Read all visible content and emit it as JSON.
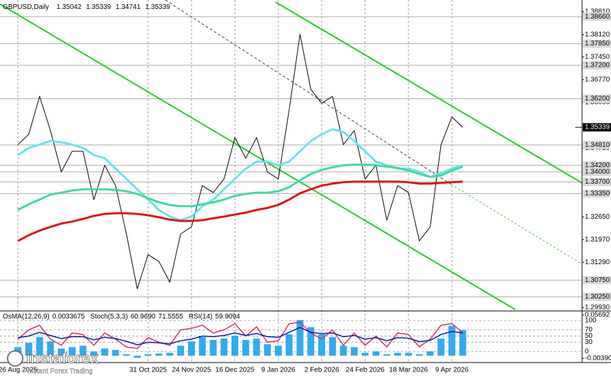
{
  "chart_data": [
    {
      "type": "line",
      "title": "GBPUSD,Daily",
      "ohlc": [
        1.35042,
        1.35339,
        1.34741,
        1.35339
      ],
      "categories": [
        "26 Aug 2025",
        null,
        null,
        null,
        null,
        null,
        null,
        null,
        null,
        null,
        null,
        null,
        "31 Oct 2025",
        null,
        null,
        null,
        "24 Nov 2025",
        null,
        null,
        null,
        "16 Dec 2025",
        null,
        null,
        null,
        "9 Jan 2026",
        null,
        null,
        null,
        "2 Feb 2026",
        null,
        null,
        null,
        "24 Feb 2026",
        null,
        null,
        null,
        "18 Mar 2026",
        null,
        null,
        null,
        "9 Apr 2026",
        null
      ],
      "series": [
        {
          "color": "#000000",
          "width": 1,
          "values": [
            1.3482,
            1.3513,
            1.3627,
            1.3524,
            1.34,
            1.3462,
            1.3462,
            1.3317,
            1.342,
            1.3359,
            1.3214,
            1.3049,
            1.3152,
            1.3131,
            1.3069,
            1.3214,
            1.3235,
            1.3359,
            1.3338,
            1.3379,
            1.3503,
            1.3441,
            1.3503,
            1.34,
            1.3379,
            1.3586,
            1.3813,
            1.3648,
            1.3606,
            1.3627,
            1.3482,
            1.3524,
            1.3379,
            1.342,
            1.3255,
            1.3359,
            1.3338,
            1.3193,
            1.3235,
            1.3482,
            1.3565,
            1.35339
          ]
        },
        {
          "color": "#66e3ea",
          "width": 3,
          "values": [
            1.3451,
            1.3472,
            1.3482,
            1.3493,
            1.3489,
            1.3482,
            1.3472,
            1.3451,
            1.3441,
            1.341,
            1.3379,
            1.3348,
            1.3317,
            1.3286,
            1.3266,
            1.3255,
            1.3266,
            1.3297,
            1.3317,
            1.3348,
            1.3379,
            1.341,
            1.3431,
            1.3431,
            1.342,
            1.3431,
            1.3462,
            1.3493,
            1.3513,
            1.3528,
            1.352,
            1.3493,
            1.3462,
            1.3431,
            1.342,
            1.341,
            1.341,
            1.34,
            1.3385,
            1.3396,
            1.341,
            1.342
          ]
        },
        {
          "color": "#3ddaa4",
          "width": 3,
          "values": [
            1.3286,
            1.3303,
            1.3317,
            1.3332,
            1.3338,
            1.3344,
            1.3348,
            1.3348,
            1.3348,
            1.3346,
            1.3342,
            1.3334,
            1.3321,
            1.3309,
            1.3301,
            1.3297,
            1.3297,
            1.3303,
            1.3309,
            1.3317,
            1.3328,
            1.3334,
            1.3338,
            1.3338,
            1.3342,
            1.3354,
            1.3375,
            1.3394,
            1.3406,
            1.3414,
            1.342,
            1.3422,
            1.3422,
            1.342,
            1.3416,
            1.3412,
            1.3404,
            1.3394,
            1.3385,
            1.3389,
            1.3404,
            1.3416
          ]
        },
        {
          "color": "#dd1111",
          "width": 3,
          "values": [
            1.3193,
            1.321,
            1.3224,
            1.3235,
            1.3245,
            1.3251,
            1.3259,
            1.3268,
            1.3274,
            1.3276,
            1.3276,
            1.3274,
            1.327,
            1.3264,
            1.3257,
            1.3253,
            1.3253,
            1.3255,
            1.3261,
            1.3266,
            1.3272,
            1.3278,
            1.3286,
            1.3292,
            1.3301,
            1.3317,
            1.3336,
            1.3348,
            1.3359,
            1.3365,
            1.3369,
            1.3371,
            1.3371,
            1.3371,
            1.3371,
            1.3371,
            1.3369,
            1.3365,
            1.3365,
            1.3367,
            1.3369,
            1.3371
          ]
        }
      ],
      "ylim": [
        1.29827,
        1.39161
      ],
      "yticks": [
        {
          "value": 1.3881,
          "label": "1.38810"
        },
        {
          "value": 1.3812,
          "label": "1.38120"
        },
        {
          "value": 1.3745,
          "label": "1.37450"
        },
        {
          "value": 1.3677,
          "label": "1.36770"
        },
        {
          "value": 1.3609,
          "label": "1.36090"
        },
        {
          "value": 1.3471,
          "label": "1.34710"
        },
        {
          "value": 1.3265,
          "label": "1.32650"
        },
        {
          "value": 1.3197,
          "label": "1.31970"
        },
        {
          "value": 1.3129,
          "label": "1.31290"
        },
        {
          "value": 1.2993,
          "label": "1.29930"
        }
      ],
      "levels": [
        {
          "value": 1.3866,
          "label": "1.38660"
        },
        {
          "value": 1.3785,
          "label": "1.37850"
        },
        {
          "value": 1.372,
          "label": "1.37200"
        },
        {
          "value": 1.362,
          "label": "1.36200"
        },
        {
          "value": 1.3481,
          "label": "1.34810"
        },
        {
          "value": 1.342,
          "label": "1.34200"
        },
        {
          "value": 1.34,
          "label": "1.34000"
        },
        {
          "value": 1.337,
          "label": "1.33700"
        },
        {
          "value": 1.3335,
          "label": "1.33350"
        },
        {
          "value": 1.3075,
          "label": "1.30750"
        },
        {
          "value": 1.3025,
          "label": "1.30250"
        }
      ],
      "current": 1.35339,
      "xgrid": true
    },
    {
      "type": "oscillator",
      "series": [
        {
          "name": "OsMA(12,26,9)",
          "readouts": [
            0.0033675
          ],
          "color": "#33aaee",
          "style": "bar",
          "axis": "y2",
          "values": [
            0.012,
            0.018,
            0.026,
            0.02,
            0.01,
            0.012,
            0.014,
            0.006,
            0.01,
            0.008,
            0.002,
            -0.003,
            0.002,
            0.003,
            0.004,
            0.014,
            0.02,
            0.026,
            0.022,
            0.024,
            0.028,
            0.022,
            0.024,
            0.016,
            0.014,
            0.03,
            0.05,
            0.04,
            0.03,
            0.026,
            0.014,
            0.012,
            0.004,
            0.006,
            0.002,
            0.004,
            0.004,
            0.002,
            0.006,
            0.024,
            0.042,
            0.036
          ]
        },
        {
          "name": "Stoch(5,3,3)",
          "readouts": [
            {
              "value": 60.969,
              "label": "60.9690"
            },
            71.5555
          ],
          "color": "#cc3366",
          "style": "line",
          "values": [
            40,
            70,
            85,
            40,
            20,
            60,
            55,
            20,
            60,
            40,
            15,
            10,
            45,
            30,
            20,
            70,
            75,
            85,
            60,
            70,
            90,
            50,
            80,
            30,
            35,
            90,
            95,
            60,
            40,
            70,
            20,
            60,
            20,
            50,
            15,
            60,
            55,
            15,
            40,
            85,
            90,
            60.969
          ]
        },
        {
          "name": "RSI(14)",
          "readouts": [
            59.9094
          ],
          "color": "#0a1a9a",
          "style": "line",
          "values": [
            45,
            50,
            62,
            52,
            42,
            48,
            48,
            38,
            46,
            42,
            33,
            22,
            30,
            28,
            25,
            35,
            40,
            50,
            48,
            52,
            60,
            52,
            58,
            48,
            46,
            62,
            78,
            62,
            58,
            60,
            48,
            52,
            40,
            45,
            35,
            45,
            43,
            32,
            36,
            55,
            65,
            59.9094
          ]
        }
      ],
      "ylim": [
        0,
        100
      ],
      "yticks": [
        100,
        70,
        50,
        30,
        0
      ],
      "y2lim": [
        -0.0039,
        0.05692
      ],
      "y2ticks": [
        0.05692,
        {
          "value": -0.0039,
          "label": "-0.00390"
        }
      ],
      "grid": true
    }
  ],
  "watermark": {
    "brand": "instaforex",
    "tagline": "Instant Forex Trading"
  }
}
